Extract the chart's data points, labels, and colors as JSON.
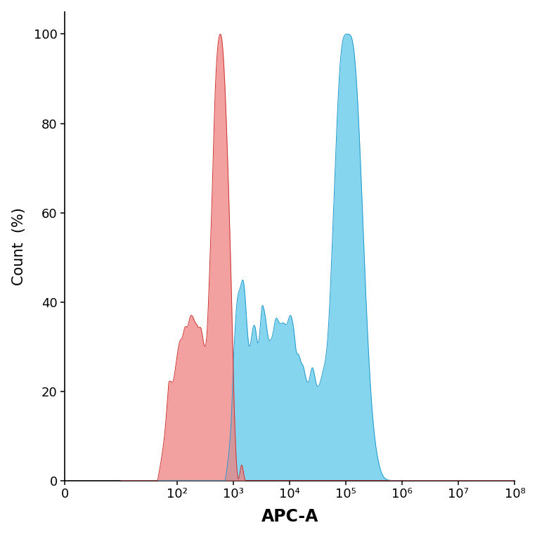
{
  "title": "",
  "xlabel": "APC-A",
  "ylabel": "Count  (%)",
  "xlim": [
    1,
    100000000.0
  ],
  "ylim": [
    0,
    105
  ],
  "yticks": [
    0,
    20,
    40,
    60,
    80,
    100
  ],
  "xtick_labels": [
    "0",
    "10²",
    "10³",
    "10⁴",
    "10⁵",
    "10⁶",
    "10⁷",
    "10⁸"
  ],
  "xtick_positions": [
    1,
    100,
    1000,
    10000,
    100000,
    1000000,
    10000000,
    100000000
  ],
  "red_fill_color": "#F08080",
  "blue_fill_color": "#5BC8E8",
  "red_line_color": "#CC3333",
  "blue_line_color": "#2299CC",
  "background_color": "#ffffff",
  "xlabel_fontsize": 17,
  "ylabel_fontsize": 15,
  "tick_fontsize": 13,
  "figsize": [
    7.64,
    7.64
  ],
  "dpi": 100
}
